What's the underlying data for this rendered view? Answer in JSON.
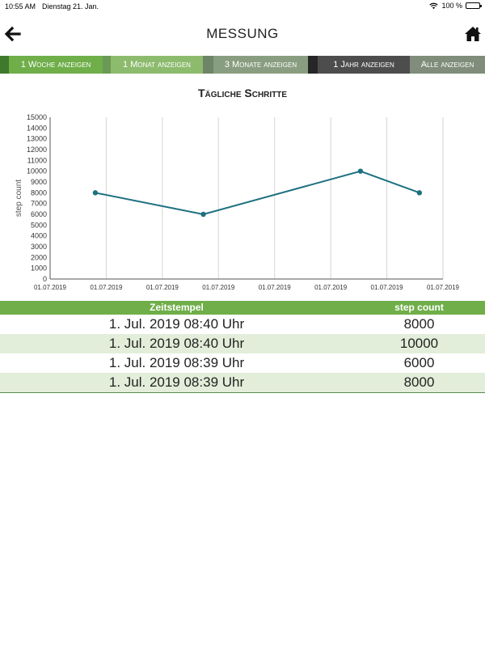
{
  "status_bar": {
    "time": "10:55 AM",
    "date": "Dienstag 21. Jan.",
    "battery": "100 %"
  },
  "header": {
    "title": "MESSUNG",
    "back_icon": "arrow-left-icon",
    "home_icon": "home-icon"
  },
  "tabs": [
    {
      "label": "1 Woche anzeigen",
      "color": "#6fae49"
    },
    {
      "label": "1 Monat anzeigen",
      "color": "#8dbb6e"
    },
    {
      "label": "3 Monate anzeigen",
      "color": "#899e80"
    },
    {
      "label": "1 Jahr anzeigen",
      "color": "#4d4d4d"
    },
    {
      "label": "Alle anzeigen",
      "color": "#7f8d7a"
    }
  ],
  "colors": {
    "accent": "#6fae49",
    "line": "#1d7180",
    "row_alt": "#e2eed9"
  },
  "chart_data": {
    "type": "line",
    "title": "Tägliche Schritte",
    "xlabel": "",
    "ylabel": "step count",
    "x_ticks": [
      "01.07.2019",
      "01.07.2019",
      "01.07.2019",
      "01.07.2019",
      "01.07.2019",
      "01.07.2019",
      "01.07.2019",
      "01.07.2019"
    ],
    "y_ticks": [
      "0",
      "1000",
      "2000",
      "3000",
      "4000",
      "5000",
      "6000",
      "7000",
      "8000",
      "9000",
      "10000",
      "11000",
      "12000",
      "13000",
      "14000",
      "15000"
    ],
    "ylim": [
      0,
      15000
    ],
    "series": [
      {
        "values": [
          8000,
          6000,
          10000,
          8000
        ]
      }
    ],
    "grid": "vertical"
  },
  "table": {
    "headers": [
      "Zeitstempel",
      "step count"
    ],
    "rows": [
      [
        "1. Jul. 2019 08:40 Uhr",
        "8000"
      ],
      [
        "1. Jul. 2019 08:40 Uhr",
        "10000"
      ],
      [
        "1. Jul. 2019 08:39 Uhr",
        "6000"
      ],
      [
        "1. Jul. 2019 08:39 Uhr",
        "8000"
      ]
    ]
  }
}
